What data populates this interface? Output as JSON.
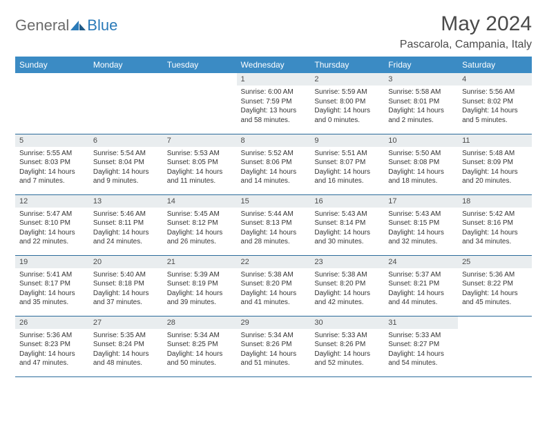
{
  "logo": {
    "general": "General",
    "blue": "Blue"
  },
  "title": "May 2024",
  "location": "Pascarola, Campania, Italy",
  "headers": [
    "Sunday",
    "Monday",
    "Tuesday",
    "Wednesday",
    "Thursday",
    "Friday",
    "Saturday"
  ],
  "colors": {
    "header_bg": "#3b8bc4",
    "header_text": "#ffffff",
    "daynum_bg": "#e9edef",
    "border": "#2a6a9a",
    "logo_gray": "#6b6b6b",
    "logo_blue": "#2a7ab8"
  },
  "weeks": [
    [
      null,
      null,
      null,
      {
        "n": "1",
        "sr": "6:00 AM",
        "ss": "7:59 PM",
        "dl": "13 hours and 58 minutes."
      },
      {
        "n": "2",
        "sr": "5:59 AM",
        "ss": "8:00 PM",
        "dl": "14 hours and 0 minutes."
      },
      {
        "n": "3",
        "sr": "5:58 AM",
        "ss": "8:01 PM",
        "dl": "14 hours and 2 minutes."
      },
      {
        "n": "4",
        "sr": "5:56 AM",
        "ss": "8:02 PM",
        "dl": "14 hours and 5 minutes."
      }
    ],
    [
      {
        "n": "5",
        "sr": "5:55 AM",
        "ss": "8:03 PM",
        "dl": "14 hours and 7 minutes."
      },
      {
        "n": "6",
        "sr": "5:54 AM",
        "ss": "8:04 PM",
        "dl": "14 hours and 9 minutes."
      },
      {
        "n": "7",
        "sr": "5:53 AM",
        "ss": "8:05 PM",
        "dl": "14 hours and 11 minutes."
      },
      {
        "n": "8",
        "sr": "5:52 AM",
        "ss": "8:06 PM",
        "dl": "14 hours and 14 minutes."
      },
      {
        "n": "9",
        "sr": "5:51 AM",
        "ss": "8:07 PM",
        "dl": "14 hours and 16 minutes."
      },
      {
        "n": "10",
        "sr": "5:50 AM",
        "ss": "8:08 PM",
        "dl": "14 hours and 18 minutes."
      },
      {
        "n": "11",
        "sr": "5:48 AM",
        "ss": "8:09 PM",
        "dl": "14 hours and 20 minutes."
      }
    ],
    [
      {
        "n": "12",
        "sr": "5:47 AM",
        "ss": "8:10 PM",
        "dl": "14 hours and 22 minutes."
      },
      {
        "n": "13",
        "sr": "5:46 AM",
        "ss": "8:11 PM",
        "dl": "14 hours and 24 minutes."
      },
      {
        "n": "14",
        "sr": "5:45 AM",
        "ss": "8:12 PM",
        "dl": "14 hours and 26 minutes."
      },
      {
        "n": "15",
        "sr": "5:44 AM",
        "ss": "8:13 PM",
        "dl": "14 hours and 28 minutes."
      },
      {
        "n": "16",
        "sr": "5:43 AM",
        "ss": "8:14 PM",
        "dl": "14 hours and 30 minutes."
      },
      {
        "n": "17",
        "sr": "5:43 AM",
        "ss": "8:15 PM",
        "dl": "14 hours and 32 minutes."
      },
      {
        "n": "18",
        "sr": "5:42 AM",
        "ss": "8:16 PM",
        "dl": "14 hours and 34 minutes."
      }
    ],
    [
      {
        "n": "19",
        "sr": "5:41 AM",
        "ss": "8:17 PM",
        "dl": "14 hours and 35 minutes."
      },
      {
        "n": "20",
        "sr": "5:40 AM",
        "ss": "8:18 PM",
        "dl": "14 hours and 37 minutes."
      },
      {
        "n": "21",
        "sr": "5:39 AM",
        "ss": "8:19 PM",
        "dl": "14 hours and 39 minutes."
      },
      {
        "n": "22",
        "sr": "5:38 AM",
        "ss": "8:20 PM",
        "dl": "14 hours and 41 minutes."
      },
      {
        "n": "23",
        "sr": "5:38 AM",
        "ss": "8:20 PM",
        "dl": "14 hours and 42 minutes."
      },
      {
        "n": "24",
        "sr": "5:37 AM",
        "ss": "8:21 PM",
        "dl": "14 hours and 44 minutes."
      },
      {
        "n": "25",
        "sr": "5:36 AM",
        "ss": "8:22 PM",
        "dl": "14 hours and 45 minutes."
      }
    ],
    [
      {
        "n": "26",
        "sr": "5:36 AM",
        "ss": "8:23 PM",
        "dl": "14 hours and 47 minutes."
      },
      {
        "n": "27",
        "sr": "5:35 AM",
        "ss": "8:24 PM",
        "dl": "14 hours and 48 minutes."
      },
      {
        "n": "28",
        "sr": "5:34 AM",
        "ss": "8:25 PM",
        "dl": "14 hours and 50 minutes."
      },
      {
        "n": "29",
        "sr": "5:34 AM",
        "ss": "8:26 PM",
        "dl": "14 hours and 51 minutes."
      },
      {
        "n": "30",
        "sr": "5:33 AM",
        "ss": "8:26 PM",
        "dl": "14 hours and 52 minutes."
      },
      {
        "n": "31",
        "sr": "5:33 AM",
        "ss": "8:27 PM",
        "dl": "14 hours and 54 minutes."
      },
      null
    ]
  ],
  "labels": {
    "sunrise": "Sunrise: ",
    "sunset": "Sunset: ",
    "daylight": "Daylight: "
  }
}
